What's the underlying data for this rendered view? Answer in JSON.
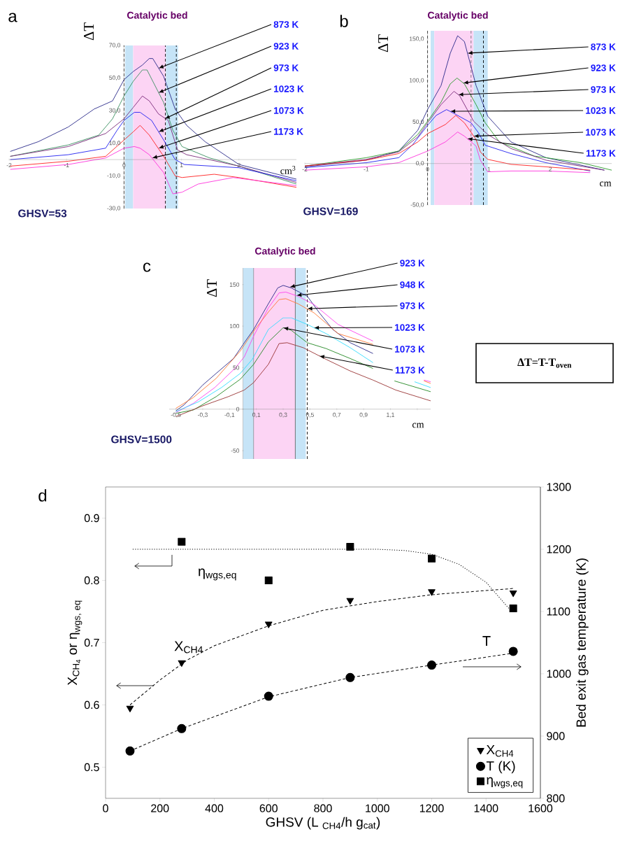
{
  "chart_data": [
    {
      "type": "line",
      "title": "Catalytic bed",
      "ylabel": "ΔT",
      "xlabel": "cm$^{3}$",
      "xlim": [
        -2,
        3
      ],
      "ylim": [
        -30,
        70
      ],
      "xticks": [
        -2,
        -1,
        0,
        1,
        2
      ],
      "yticks": [
        {
          "value": 70,
          "label": "70,0"
        },
        {
          "value": 50,
          "label": "50,0"
        },
        {
          "value": 30,
          "label": "30,0"
        },
        {
          "value": 10,
          "label": "10,0"
        },
        {
          "value": -10,
          "label": "-10,0"
        },
        {
          "value": -30,
          "label": "-30,0"
        }
      ],
      "bands": [
        {
          "axis": "x",
          "from": 0.02,
          "to": 0.16,
          "color": "#c6e4f7"
        },
        {
          "axis": "x",
          "from": 0.16,
          "to": 0.73,
          "color": "#fcd4f4"
        },
        {
          "axis": "x",
          "from": 0.73,
          "to": 0.94,
          "color": "#c6e4f7"
        }
      ],
      "ref_lines": [
        {
          "axis": "x",
          "value": 0,
          "line_style": "dashed",
          "color": "#000000"
        },
        {
          "axis": "x",
          "value": 0.72,
          "line_style": "dashed",
          "color": "#000000"
        },
        {
          "axis": "x",
          "value": 0.91,
          "line_style": "dashed",
          "color": "#000000"
        }
      ],
      "annotations": [
        "a",
        "GHSV=53",
        {
          "text": "873 K",
          "x": 0.6,
          "y": 56
        },
        {
          "text": "923 K",
          "x": 0.6,
          "y": 41
        },
        {
          "text": "973 K",
          "x": 0.71,
          "y": 25
        },
        {
          "text": "1023 K",
          "x": 0.6,
          "y": 17
        },
        {
          "text": "1073 K",
          "x": 0.6,
          "y": 7
        },
        {
          "text": "1173 K",
          "x": 0.49,
          "y": 1
        }
      ],
      "series": [
        {
          "color": "#2a2a8a",
          "x": [
            -1.98,
            -1.49,
            -0.97,
            -0.52,
            -0.2,
            0,
            0.16,
            0.32,
            0.44,
            0.5,
            0.69,
            0.89,
            1.09,
            1.41,
            2.0,
            3.0
          ],
          "values": [
            5,
            11,
            20,
            31,
            36,
            49,
            54,
            58,
            62,
            62,
            51,
            31,
            21,
            11,
            -3,
            -12
          ]
        },
        {
          "color": "#3a9060",
          "x": [
            -1.98,
            -0.97,
            -0.44,
            -0.2,
            0,
            0.16,
            0.32,
            0.4,
            0.69,
            0.85,
            1.01,
            1.49,
            2.0,
            3.0
          ],
          "values": [
            2,
            9,
            15,
            25,
            39,
            48,
            55,
            55,
            35,
            18,
            8,
            1,
            -4,
            -15
          ]
        },
        {
          "color": "#7a2a7a",
          "x": [
            -1.98,
            -0.97,
            -0.32,
            0,
            0.16,
            0.32,
            0.44,
            0.6,
            0.77,
            0.93,
            1.09,
            2.0,
            3.0
          ],
          "values": [
            2,
            8,
            16,
            25,
            32,
            39,
            36,
            28,
            24,
            6,
            3,
            -4,
            -14
          ]
        },
        {
          "color": "#2020f0",
          "x": [
            -1.98,
            -0.97,
            -0.32,
            -0.12,
            0,
            0.18,
            0.28,
            0.48,
            0.69,
            0.89,
            1.05,
            2.0,
            3.0
          ],
          "values": [
            0,
            3,
            7,
            18,
            24,
            29,
            29,
            24,
            12,
            0,
            -3,
            -5,
            -13
          ]
        },
        {
          "color": "#ff2020",
          "x": [
            -1.98,
            -0.97,
            -0.32,
            0,
            0.16,
            0.28,
            0.44,
            0.69,
            0.89,
            1.01,
            1.57,
            2.0,
            3.0
          ],
          "values": [
            -4,
            -1,
            2,
            12,
            17,
            21,
            15,
            2,
            -10,
            -11,
            -9,
            -11,
            -17
          ]
        },
        {
          "color": "#ff33dd",
          "x": [
            -1.98,
            -0.97,
            -0.32,
            0,
            0.18,
            0.28,
            0.44,
            0.69,
            0.85,
            1.01,
            1.29,
            1.9,
            3.0
          ],
          "values": [
            -6,
            -3,
            1,
            7,
            8,
            7,
            3,
            -8,
            -21,
            -20,
            -15,
            -11,
            -16
          ]
        }
      ]
    },
    {
      "type": "line",
      "title": "Catalytic bed",
      "ylabel": "ΔT",
      "xlabel": "cm",
      "xlim": [
        -2,
        3
      ],
      "ylim": [
        -50,
        160
      ],
      "xticks": [
        -2,
        -1,
        0,
        1,
        2
      ],
      "yticks": [
        {
          "value": 150,
          "label": "150,0"
        },
        {
          "value": 100,
          "label": "100,0"
        },
        {
          "value": 50,
          "label": "50,0"
        },
        {
          "value": 0,
          "label": "0,0"
        },
        {
          "value": -50,
          "label": "-50,0"
        }
      ],
      "bands": [
        {
          "axis": "x",
          "from": 0.05,
          "to": 0.11,
          "color": "#c6e4f7"
        },
        {
          "axis": "x",
          "from": 0.11,
          "to": 0.75,
          "color": "#fcd4f4"
        },
        {
          "axis": "x",
          "from": 0.75,
          "to": 0.98,
          "color": "#c6e4f7"
        }
      ],
      "ref_lines": [
        {
          "axis": "x",
          "value": 0,
          "line_style": "dashed",
          "color": "#000000"
        },
        {
          "axis": "x",
          "value": 0.71,
          "line_style": "dashed",
          "color": "#555555"
        },
        {
          "axis": "x",
          "value": 0.91,
          "line_style": "dashed",
          "color": "#000000"
        }
      ],
      "annotations": [
        "b",
        "GHSV=169",
        {
          "text": "873 K",
          "x": 0.65,
          "y": 133
        },
        {
          "text": "923 K",
          "x": 0.58,
          "y": 97
        },
        {
          "text": "973 K",
          "x": 0.5,
          "y": 83
        },
        {
          "text": "1023 K",
          "x": 0.37,
          "y": 63
        },
        {
          "text": "1073 K",
          "x": 0.75,
          "y": 33
        },
        {
          "text": "1173 K",
          "x": 0.65,
          "y": 30
        }
      ],
      "series": [
        {
          "color": "#2a2a8a",
          "x": [
            -2,
            -1,
            -0.47,
            -0.16,
            0,
            0.22,
            0.37,
            0.49,
            0.6,
            0.79,
            0.98,
            1.36,
            1.93,
            2.88
          ],
          "values": [
            -4,
            4,
            15,
            40,
            65,
            94,
            133,
            154,
            147,
            94,
            57,
            26,
            7,
            -8
          ]
        },
        {
          "color": "#2a9a2a",
          "x": [
            -2,
            -1,
            -0.47,
            -0.16,
            0,
            0.22,
            0.37,
            0.48,
            0.6,
            0.79,
            0.94,
            1.17,
            1.74,
            2.5,
            3.0
          ],
          "values": [
            -3,
            7,
            15,
            35,
            51,
            74,
            96,
            103,
            96,
            71,
            49,
            26,
            9,
            1,
            -8
          ]
        },
        {
          "color": "#7a2a7a",
          "x": [
            -2,
            -1,
            -0.47,
            -0.16,
            0,
            0.22,
            0.43,
            0.52,
            0.75,
            0.98,
            1.36,
            1.93,
            2.88
          ],
          "values": [
            -3,
            5,
            14,
            32,
            49,
            71,
            87,
            82,
            51,
            35,
            18,
            4,
            -8
          ]
        },
        {
          "color": "#2020f0",
          "x": [
            -2,
            -1,
            -0.47,
            -0.24,
            0,
            0.14,
            0.31,
            0.44,
            0.71,
            0.83,
            0.94,
            1.36,
            1.93,
            2.65
          ],
          "values": [
            -5,
            1,
            7,
            23,
            46,
            58,
            65,
            60,
            49,
            37,
            22,
            12,
            1,
            -9
          ]
        },
        {
          "color": "#ff2020",
          "x": [
            -2,
            -1,
            -0.47,
            -0.16,
            0,
            0.29,
            0.46,
            0.6,
            0.79,
            0.86,
            0.98,
            1.36,
            1.93,
            2.65
          ],
          "values": [
            -3,
            4,
            12,
            26,
            36,
            47,
            58,
            49,
            29,
            14,
            5,
            -1,
            -4,
            -8
          ]
        },
        {
          "color": "#ff33dd",
          "x": [
            -2,
            -1,
            -0.47,
            0,
            0.29,
            0.49,
            0.6,
            0.79,
            0.86,
            0.98,
            1.36,
            1.93,
            2.65
          ],
          "values": [
            -8,
            -4,
            1,
            15,
            26,
            38,
            33,
            21,
            4,
            -10,
            -9,
            -9,
            -11
          ]
        }
      ]
    },
    {
      "type": "line",
      "title": "Catalytic bed",
      "ylabel": "ΔT",
      "xlabel": "cm",
      "xlim": [
        -0.55,
        1.4
      ],
      "ylim": [
        -60,
        170
      ],
      "xticks": [
        {
          "value": -0.5,
          "label": "-0,5"
        },
        {
          "value": -0.3,
          "label": "-0,3"
        },
        {
          "value": -0.1,
          "label": "-0,1"
        },
        {
          "value": 0.1,
          "label": "0,1"
        },
        {
          "value": 0.3,
          "label": "0,3"
        },
        {
          "value": 0.5,
          "label": "0,5"
        },
        {
          "value": 0.7,
          "label": "0,7"
        },
        {
          "value": 0.9,
          "label": "0,9"
        },
        {
          "value": 1.1,
          "label": "1,1"
        },
        {
          "value": 1.3,
          "label": null
        }
      ],
      "yticks": [
        150,
        100,
        50,
        0,
        -50
      ],
      "bands": [
        {
          "axis": "x",
          "from": 0.0,
          "to": 0.08,
          "color": "#c6e4f7"
        },
        {
          "axis": "x",
          "from": 0.08,
          "to": 0.39,
          "color": "#fcd4f4"
        },
        {
          "axis": "x",
          "from": 0.39,
          "to": 0.47,
          "color": "#c6e4f7"
        }
      ],
      "ref_lines": [
        {
          "axis": "x",
          "value": 0.08,
          "line_style": "solid",
          "color": "#555555"
        },
        {
          "axis": "x",
          "value": 0.39,
          "line_style": "solid",
          "color": "#555555"
        },
        {
          "axis": "x",
          "value": 0.48,
          "line_style": "dashed",
          "color": "#000000"
        }
      ],
      "annotations": [
        "c",
        "GHSV=1500",
        "ΔT=T-T$_{oven}$",
        {
          "text": "923 K",
          "x": 0.35,
          "y": 147
        },
        {
          "text": "948 K",
          "x": 0.4,
          "y": 137
        },
        {
          "text": "973 K",
          "x": 0.48,
          "y": 121
        },
        {
          "text": "1023 K",
          "x": 0.53,
          "y": 98
        },
        {
          "text": "1073 K",
          "x": 0.3,
          "y": 98
        },
        {
          "text": "1173 K",
          "x": 0.57,
          "y": 64
        }
      ],
      "series": [
        {
          "color": "#2a2a8a",
          "x": [
            -0.5,
            -0.44,
            -0.3,
            -0.2,
            -0.07,
            0.01,
            0.08,
            0.19,
            0.26,
            0.3,
            0.36,
            0.48,
            0.57,
            0.67,
            0.8,
            0.97
          ],
          "values": [
            -2,
            5,
            29,
            43,
            61,
            80,
            96,
            127,
            146,
            149,
            146,
            136,
            116,
            96,
            80,
            67
          ]
        },
        {
          "color": "#ff44ee",
          "x": [
            -0.5,
            -0.37,
            -0.21,
            -0.06,
            0.01,
            0.08,
            0.19,
            0.27,
            0.32,
            0.41,
            0.53,
            0.71,
            0.97,
            1.2,
            1.35,
            1.4
          ],
          "values": [
            -4,
            7,
            26,
            49,
            63,
            88,
            122,
            140,
            141,
            136,
            126,
            102,
            82,
            null,
            35,
            33
          ]
        },
        {
          "color": "#ff7733",
          "x": [
            -0.5,
            -0.37,
            -0.2,
            -0.02,
            0.08,
            0.19,
            0.27,
            0.32,
            0.41,
            0.53,
            0.71,
            0.97,
            1.2,
            1.35,
            1.4
          ],
          "values": [
            1,
            14,
            37,
            70,
            94,
            117,
            132,
            133,
            127,
            116,
            91,
            78,
            null,
            34,
            31
          ]
        },
        {
          "color": "#33ddff",
          "x": [
            -0.5,
            -0.33,
            -0.16,
            -0.02,
            0.07,
            0.19,
            0.3,
            0.36,
            0.48,
            0.62,
            0.8,
            0.97,
            1.1,
            1.28,
            1.4
          ],
          "values": [
            -3,
            9,
            26,
            43,
            60,
            96,
            110,
            110,
            102,
            91,
            74,
            56,
            null,
            33,
            26
          ]
        },
        {
          "color": "#228822",
          "x": [
            -0.5,
            -0.37,
            -0.2,
            -0.02,
            0.08,
            0.19,
            0.3,
            0.36,
            0.48,
            0.62,
            0.8,
            0.97,
            1.05,
            1.13,
            1.4
          ],
          "values": [
            -5,
            -1,
            15,
            36,
            54,
            81,
            98,
            95,
            80,
            73,
            61,
            49,
            null,
            34,
            21
          ]
        },
        {
          "color": "#993333",
          "x": [
            -0.5,
            -0.3,
            -0.11,
            0.01,
            0.08,
            0.19,
            0.27,
            0.33,
            0.45,
            0.62,
            0.8,
            0.97,
            1.14,
            1.4
          ],
          "values": [
            -9,
            4,
            15,
            23,
            32,
            54,
            79,
            80,
            74,
            60,
            46,
            35,
            23,
            10
          ]
        }
      ]
    },
    {
      "type": "scatter",
      "xlabel": "GHSV (L $_{CH4}$/h g$_{cat}$)",
      "ylabel": "\\text{X}_{\\text{CH}_{\\text{4}}}\\text{ or }\\text{η}_{\\text{wgs, eq}}",
      "y2label": "Bed exit gas temperature (K)",
      "xlim": [
        0,
        1600
      ],
      "ylim": [
        0.45,
        0.95
      ],
      "y2lim": [
        800,
        1300
      ],
      "xticks": [
        0,
        200,
        400,
        600,
        800,
        1000,
        1200,
        1400,
        1600
      ],
      "yticks": [
        0.5,
        0.6,
        0.7,
        0.8,
        0.9
      ],
      "y2ticks": [
        800,
        900,
        1000,
        1100,
        1200,
        1300
      ],
      "legend": "bottom right",
      "annotations": [
        "d",
        "η$_{wgs,eq}$",
        "X$_{CH4}$",
        "T"
      ],
      "series": [
        {
          "name": "X$_{CH4}$",
          "marker": "triangle",
          "color": "#000000",
          "x": [
            90,
            280,
            600,
            900,
            1200,
            1500
          ],
          "values": [
            0.595,
            0.668,
            0.73,
            0.768,
            0.782,
            0.78
          ]
        },
        {
          "name": "T (K)",
          "axis": "y2",
          "marker": "circle",
          "color": "#000000",
          "x": [
            90,
            280,
            600,
            900,
            1200,
            1500
          ],
          "values": [
            876,
            912,
            964,
            994,
            1014,
            1036
          ]
        },
        {
          "name": "η$_{wgs,eq}$",
          "marker": "square",
          "color": "#000000",
          "x": [
            280,
            600,
            900,
            1200,
            1500
          ],
          "values": [
            0.862,
            0.8,
            0.854,
            0.835,
            0.755
          ]
        },
        {
          "type": "line",
          "line_style": "dashed",
          "color": "#000000",
          "x": [
            90,
            200,
            300,
            400,
            600,
            800,
            1000,
            1200,
            1500
          ],
          "values": [
            0.6,
            0.64,
            0.672,
            0.695,
            0.727,
            0.752,
            0.766,
            0.777,
            0.787
          ]
        },
        {
          "type": "line",
          "line_style": "dashed",
          "axis": "y2",
          "color": "#000000",
          "x": [
            90,
            280,
            600,
            900,
            1200,
            1500
          ],
          "values": [
            876,
            912,
            963,
            994,
            1014,
            1033
          ]
        },
        {
          "type": "line",
          "line_style": "dotted",
          "color": "#000000",
          "x": [
            100,
            1000,
            1100,
            1200,
            1300,
            1400,
            1490
          ],
          "values": [
            0.85,
            0.85,
            0.848,
            0.842,
            0.826,
            0.797,
            0.752
          ]
        }
      ]
    }
  ]
}
